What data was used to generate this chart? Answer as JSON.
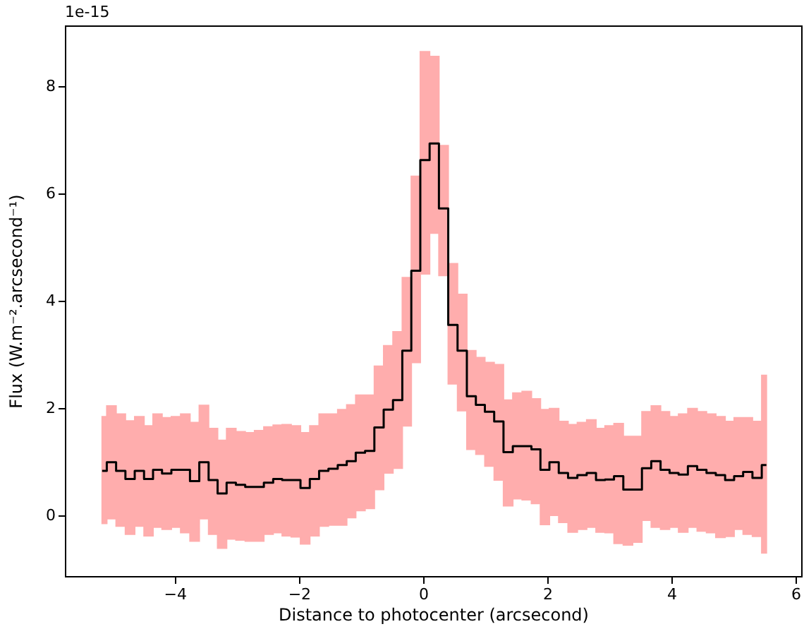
{
  "chart_data": {
    "type": "step",
    "xlabel": "Distance to photocenter (arcsecond)",
    "ylabel": "Flux (W.m⁻².arcsecond⁻¹)",
    "annotations": [
      "1e-15"
    ],
    "x": [
      -5.17,
      -5.02,
      -4.87,
      -4.72,
      -4.57,
      -4.42,
      -4.28,
      -4.13,
      -3.98,
      -3.83,
      -3.68,
      -3.53,
      -3.38,
      -3.24,
      -3.09,
      -2.94,
      -2.79,
      -2.64,
      -2.49,
      -2.34,
      -2.2,
      -2.05,
      -1.9,
      -1.75,
      -1.6,
      -1.45,
      -1.3,
      -1.16,
      -1.01,
      -0.86,
      -0.71,
      -0.56,
      -0.41,
      -0.26,
      -0.12,
      0.03,
      0.18,
      0.33,
      0.48,
      0.63,
      0.78,
      0.92,
      1.07,
      1.22,
      1.37,
      1.52,
      1.67,
      1.82,
      1.96,
      2.11,
      2.26,
      2.41,
      2.56,
      2.71,
      2.86,
      3.0,
      3.15,
      3.3,
      3.45,
      3.6,
      3.75,
      3.9,
      4.04,
      4.19,
      4.34,
      4.49,
      4.64,
      4.79,
      4.94,
      5.08,
      5.23,
      5.38,
      5.53
    ],
    "series": [
      {
        "color": "#000000",
        "values": [
          0.83,
          0.99,
          0.83,
          0.68,
          0.83,
          0.68,
          0.85,
          0.78,
          0.85,
          0.85,
          0.64,
          0.99,
          0.66,
          0.41,
          0.61,
          0.57,
          0.53,
          0.53,
          0.61,
          0.68,
          0.66,
          0.66,
          0.51,
          0.68,
          0.83,
          0.87,
          0.94,
          1.01,
          1.17,
          1.2,
          1.64,
          1.97,
          2.15,
          3.07,
          4.56,
          6.62,
          6.93,
          5.72,
          3.55,
          3.07,
          2.22,
          2.06,
          1.93,
          1.75,
          1.18,
          1.29,
          1.29,
          1.23,
          0.85,
          0.99,
          0.79,
          0.7,
          0.75,
          0.79,
          0.66,
          0.67,
          0.73,
          0.48,
          0.48,
          0.88,
          1.01,
          0.85,
          0.79,
          0.76,
          0.92,
          0.85,
          0.79,
          0.75,
          0.66,
          0.73,
          0.81,
          0.7,
          0.94
        ],
        "lower": [
          -0.15,
          -0.06,
          -0.2,
          -0.35,
          -0.2,
          -0.38,
          -0.22,
          -0.26,
          -0.22,
          -0.32,
          -0.48,
          -0.06,
          -0.35,
          -0.61,
          -0.44,
          -0.46,
          -0.48,
          -0.48,
          -0.35,
          -0.32,
          -0.38,
          -0.4,
          -0.53,
          -0.38,
          -0.2,
          -0.18,
          -0.18,
          -0.04,
          0.09,
          0.13,
          0.48,
          0.79,
          0.88,
          1.67,
          2.85,
          4.5,
          5.26,
          4.47,
          2.45,
          1.95,
          1.23,
          1.14,
          0.92,
          0.66,
          0.18,
          0.31,
          0.29,
          0.22,
          -0.17,
          0.0,
          -0.13,
          -0.31,
          -0.26,
          -0.22,
          -0.31,
          -0.32,
          -0.52,
          -0.55,
          -0.5,
          -0.09,
          -0.22,
          -0.26,
          -0.22,
          -0.31,
          -0.22,
          -0.29,
          -0.32,
          -0.41,
          -0.39,
          -0.26,
          -0.35,
          -0.39,
          -0.7
        ],
        "upper": [
          1.84,
          2.04,
          1.89,
          1.76,
          1.84,
          1.67,
          1.89,
          1.82,
          1.84,
          1.89,
          1.73,
          2.05,
          1.62,
          1.4,
          1.62,
          1.56,
          1.54,
          1.58,
          1.65,
          1.68,
          1.69,
          1.67,
          1.54,
          1.67,
          1.89,
          1.89,
          1.97,
          2.06,
          2.24,
          2.24,
          2.78,
          3.16,
          3.42,
          4.43,
          6.32,
          8.64,
          8.55,
          6.89,
          4.69,
          4.12,
          3.07,
          2.94,
          2.85,
          2.81,
          2.15,
          2.28,
          2.31,
          2.17,
          1.97,
          1.99,
          1.75,
          1.69,
          1.73,
          1.78,
          1.62,
          1.67,
          1.71,
          1.47,
          1.47,
          1.93,
          2.04,
          1.93,
          1.84,
          1.89,
          1.99,
          1.93,
          1.89,
          1.84,
          1.75,
          1.82,
          1.82,
          1.75,
          2.61
        ]
      }
    ],
    "xlim": [
      -5.77,
      6.09
    ],
    "ylim": [
      -1.13,
      9.13
    ],
    "xticks": [
      -4,
      -2,
      0,
      2,
      4,
      6
    ],
    "yticks": [
      0,
      2,
      4,
      6,
      8
    ]
  }
}
